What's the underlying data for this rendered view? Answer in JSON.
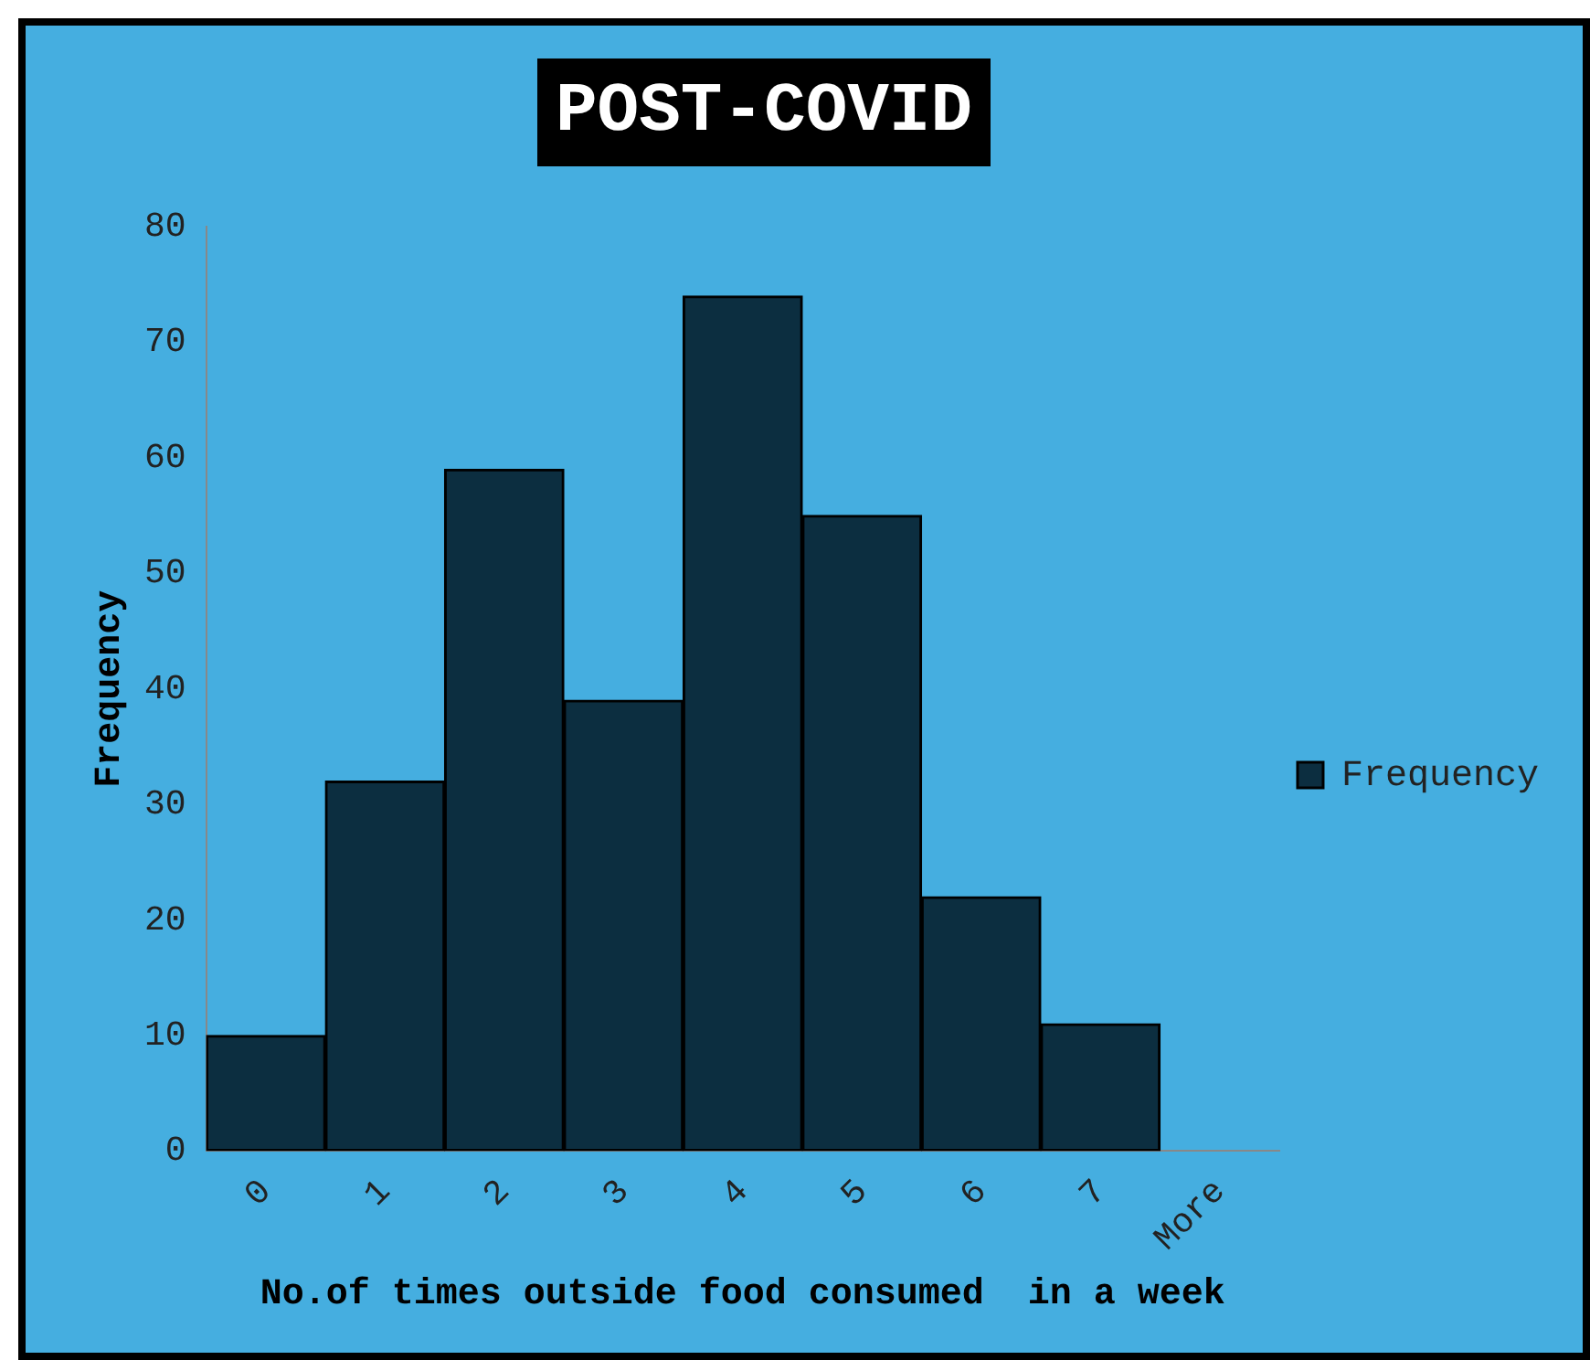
{
  "chart_data": {
    "type": "bar",
    "title": "POST-COVID",
    "xlabel": "No.of times outside food consumed  in a week",
    "ylabel": "Frequency",
    "categories": [
      "0",
      "1",
      "2",
      "3",
      "4",
      "5",
      "6",
      "7",
      "More"
    ],
    "series": [
      {
        "name": "Frequency",
        "color": "#0c2e40",
        "values": [
          10,
          32,
          59,
          39,
          74,
          55,
          22,
          11,
          0
        ]
      }
    ],
    "ylim": [
      0,
      80
    ],
    "yticks": [
      0,
      10,
      20,
      30,
      40,
      50,
      60,
      70,
      80
    ],
    "grid": false,
    "legend": "right"
  }
}
